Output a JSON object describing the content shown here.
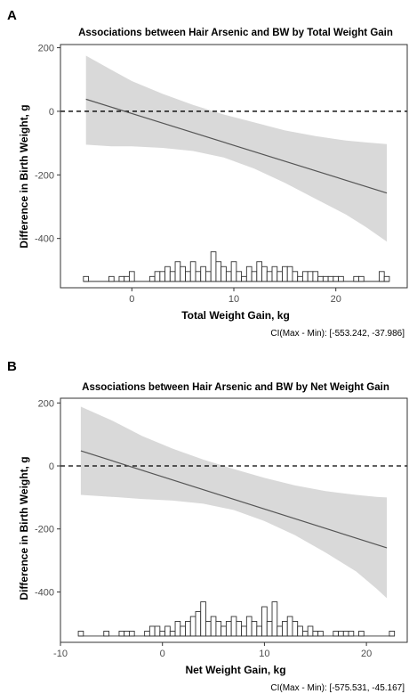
{
  "chart_data": [
    {
      "type": "line",
      "panel_label": "A",
      "title": "Associations between Hair Arsenic and BW by Total Weight Gain",
      "xlabel": "Total Weight Gain, kg",
      "ylabel": "Difference in Birth Weight, g",
      "xlim": [
        -7,
        27
      ],
      "ylim": [
        -555,
        210
      ],
      "xticks": [
        0,
        10,
        20
      ],
      "yticks": [
        200,
        0,
        -200,
        -400
      ],
      "reference_line_y": 0,
      "fit": {
        "x": [
          -4.5,
          25
        ],
        "y": [
          38,
          -257
        ]
      },
      "ci_band": {
        "x": [
          -4.5,
          -2,
          0,
          3,
          6,
          9,
          12,
          15,
          18,
          21,
          23,
          25
        ],
        "upper": [
          175,
          130,
          95,
          55,
          20,
          -10,
          -35,
          -60,
          -78,
          -92,
          -98,
          -103
        ],
        "lower": [
          -105,
          -110,
          -110,
          -115,
          -125,
          -145,
          -180,
          -225,
          -275,
          -325,
          -365,
          -410
        ]
      },
      "histogram": {
        "bin_width": 0.5,
        "baseline": -535,
        "unit_height": 15.5,
        "bins": [
          {
            "x": -4.5,
            "count": 1
          },
          {
            "x": -2,
            "count": 1
          },
          {
            "x": -1,
            "count": 1
          },
          {
            "x": -0.5,
            "count": 1
          },
          {
            "x": 0,
            "count": 2
          },
          {
            "x": 2,
            "count": 1
          },
          {
            "x": 2.5,
            "count": 2
          },
          {
            "x": 3,
            "count": 2
          },
          {
            "x": 3.5,
            "count": 3
          },
          {
            "x": 4,
            "count": 2
          },
          {
            "x": 4.5,
            "count": 4
          },
          {
            "x": 5,
            "count": 3
          },
          {
            "x": 5.5,
            "count": 2
          },
          {
            "x": 6,
            "count": 4
          },
          {
            "x": 6.5,
            "count": 2
          },
          {
            "x": 7,
            "count": 3
          },
          {
            "x": 7.5,
            "count": 2
          },
          {
            "x": 8,
            "count": 6
          },
          {
            "x": 8.5,
            "count": 4
          },
          {
            "x": 9,
            "count": 3
          },
          {
            "x": 9.5,
            "count": 2
          },
          {
            "x": 10,
            "count": 4
          },
          {
            "x": 10.5,
            "count": 2
          },
          {
            "x": 11,
            "count": 1
          },
          {
            "x": 11.5,
            "count": 3
          },
          {
            "x": 12,
            "count": 2
          },
          {
            "x": 12.5,
            "count": 4
          },
          {
            "x": 13,
            "count": 3
          },
          {
            "x": 13.5,
            "count": 2
          },
          {
            "x": 14,
            "count": 3
          },
          {
            "x": 14.5,
            "count": 2
          },
          {
            "x": 15,
            "count": 3
          },
          {
            "x": 15.5,
            "count": 3
          },
          {
            "x": 16,
            "count": 2
          },
          {
            "x": 16.5,
            "count": 1
          },
          {
            "x": 17,
            "count": 2
          },
          {
            "x": 17.5,
            "count": 2
          },
          {
            "x": 18,
            "count": 2
          },
          {
            "x": 18.5,
            "count": 1
          },
          {
            "x": 19,
            "count": 1
          },
          {
            "x": 19.5,
            "count": 1
          },
          {
            "x": 20,
            "count": 1
          },
          {
            "x": 20.5,
            "count": 1
          },
          {
            "x": 22,
            "count": 1
          },
          {
            "x": 22.5,
            "count": 1
          },
          {
            "x": 24.5,
            "count": 2
          },
          {
            "x": 25,
            "count": 1
          }
        ]
      },
      "ci_note": "CI(Max - Min): [-553.242, -37.986]"
    },
    {
      "type": "line",
      "panel_label": "B",
      "title": "Associations between Hair Arsenic and BW by Net Weight Gain",
      "xlabel": "Net Weight Gain, kg",
      "ylabel": "Difference in Birth Weight, g",
      "xlim": [
        -10,
        24
      ],
      "ylim": [
        -560,
        215
      ],
      "xticks": [
        -10,
        0,
        10,
        20
      ],
      "yticks": [
        200,
        0,
        -200,
        -400
      ],
      "reference_line_y": 0,
      "fit": {
        "x": [
          -8,
          22
        ],
        "y": [
          48,
          -260
        ]
      },
      "ci_band": {
        "x": [
          -8,
          -5,
          -2,
          1,
          4,
          7,
          10,
          13,
          16,
          19,
          21,
          22
        ],
        "upper": [
          188,
          145,
          95,
          55,
          20,
          -10,
          -38,
          -62,
          -80,
          -92,
          -98,
          -100
        ],
        "lower": [
          -92,
          -98,
          -105,
          -110,
          -120,
          -140,
          -175,
          -220,
          -275,
          -335,
          -390,
          -420
        ]
      },
      "histogram": {
        "bin_width": 0.5,
        "baseline": -540,
        "unit_height": 15.5,
        "bins": [
          {
            "x": -8,
            "count": 1
          },
          {
            "x": -5.5,
            "count": 1
          },
          {
            "x": -4,
            "count": 1
          },
          {
            "x": -3.5,
            "count": 1
          },
          {
            "x": -3,
            "count": 1
          },
          {
            "x": -1.5,
            "count": 1
          },
          {
            "x": -1,
            "count": 2
          },
          {
            "x": -0.5,
            "count": 2
          },
          {
            "x": 0,
            "count": 1
          },
          {
            "x": 0.5,
            "count": 2
          },
          {
            "x": 1,
            "count": 1
          },
          {
            "x": 1.5,
            "count": 3
          },
          {
            "x": 2,
            "count": 2
          },
          {
            "x": 2.5,
            "count": 3
          },
          {
            "x": 3,
            "count": 4
          },
          {
            "x": 3.5,
            "count": 5
          },
          {
            "x": 4,
            "count": 7
          },
          {
            "x": 4.5,
            "count": 3
          },
          {
            "x": 5,
            "count": 4
          },
          {
            "x": 5.5,
            "count": 3
          },
          {
            "x": 6,
            "count": 2
          },
          {
            "x": 6.5,
            "count": 3
          },
          {
            "x": 7,
            "count": 4
          },
          {
            "x": 7.5,
            "count": 3
          },
          {
            "x": 8,
            "count": 2
          },
          {
            "x": 8.5,
            "count": 4
          },
          {
            "x": 9,
            "count": 3
          },
          {
            "x": 9.5,
            "count": 2
          },
          {
            "x": 10,
            "count": 6
          },
          {
            "x": 10.5,
            "count": 3
          },
          {
            "x": 11,
            "count": 7
          },
          {
            "x": 11.5,
            "count": 2
          },
          {
            "x": 12,
            "count": 3
          },
          {
            "x": 12.5,
            "count": 4
          },
          {
            "x": 13,
            "count": 3
          },
          {
            "x": 13.5,
            "count": 2
          },
          {
            "x": 14,
            "count": 1
          },
          {
            "x": 14.5,
            "count": 2
          },
          {
            "x": 15,
            "count": 1
          },
          {
            "x": 15.5,
            "count": 1
          },
          {
            "x": 17,
            "count": 1
          },
          {
            "x": 17.5,
            "count": 1
          },
          {
            "x": 18,
            "count": 1
          },
          {
            "x": 18.5,
            "count": 1
          },
          {
            "x": 19.5,
            "count": 1
          },
          {
            "x": 22.5,
            "count": 1
          }
        ]
      },
      "ci_note": "CI(Max - Min): [-575.531, -45.167]"
    }
  ]
}
